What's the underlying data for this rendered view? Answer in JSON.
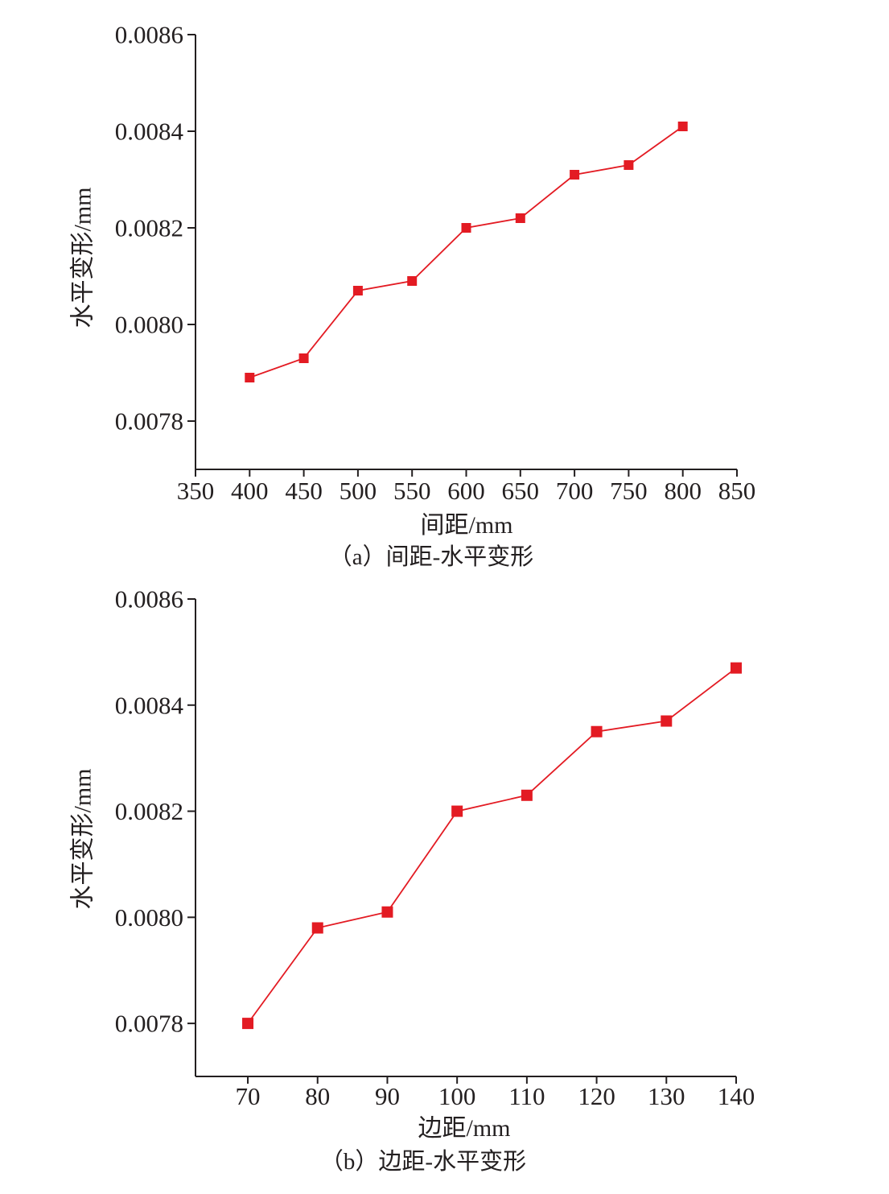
{
  "chart_data": [
    {
      "type": "line",
      "caption": "（a）间距-水平变形",
      "xlabel": "间距/mm",
      "ylabel": "水平变形/mm",
      "xlim": [
        350,
        850
      ],
      "ylim": [
        0.0077,
        0.0086
      ],
      "xticks": [
        350,
        400,
        450,
        500,
        550,
        600,
        650,
        700,
        750,
        800,
        850
      ],
      "yticks": [
        "0.0078",
        "0.0080",
        "0.0082",
        "0.0084",
        "0.0086"
      ],
      "grid": false,
      "x": [
        400,
        450,
        500,
        550,
        600,
        650,
        700,
        750,
        800
      ],
      "series": [
        {
          "color": "#e31b23",
          "values": [
            0.00789,
            0.00793,
            0.00807,
            0.00809,
            0.0082,
            0.00822,
            0.00831,
            0.00833,
            0.00841
          ]
        }
      ]
    },
    {
      "type": "line",
      "caption": "（b）边距-水平变形",
      "xlabel": "边距/mm",
      "ylabel": "水平变形/mm",
      "xlim": [
        62.5,
        140
      ],
      "ylim": [
        0.0077,
        0.0086
      ],
      "xticks": [
        70,
        80,
        90,
        100,
        110,
        120,
        130,
        140
      ],
      "yticks": [
        "0.0078",
        "0.0080",
        "0.0082",
        "0.0084",
        "0.0086"
      ],
      "grid": false,
      "x": [
        70,
        80,
        90,
        100,
        110,
        120,
        130,
        140
      ],
      "series": [
        {
          "color": "#e31b23",
          "values": [
            0.0078,
            0.00798,
            0.00801,
            0.0082,
            0.00823,
            0.00835,
            0.00837,
            0.00847
          ]
        }
      ]
    }
  ]
}
